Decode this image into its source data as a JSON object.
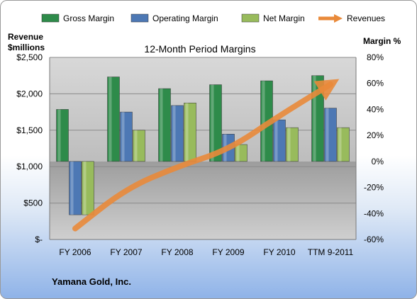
{
  "company": "Yamana Gold, Inc.",
  "chart_data": {
    "type": "bar",
    "title": "12-Month Period Margins",
    "categories": [
      "FY 2006",
      "FY 2007",
      "FY 2008",
      "FY 2009",
      "FY 2010",
      "TTM 9-2011"
    ],
    "series": [
      {
        "name": "Gross Margin",
        "axis": "right",
        "values": [
          40,
          65,
          56,
          59,
          62,
          66
        ],
        "color": "#2e8b4a"
      },
      {
        "name": "Operating Margin",
        "axis": "right",
        "values": [
          -41,
          38,
          43,
          21,
          32,
          41
        ],
        "color": "#4d78b4"
      },
      {
        "name": "Net Margin",
        "axis": "right",
        "values": [
          -41,
          24,
          45,
          13,
          26,
          26
        ],
        "color": "#98bb5c"
      },
      {
        "name": "Revenues",
        "type": "line",
        "axis": "left",
        "values": [
          150,
          700,
          1000,
          1230,
          1700,
          2130
        ],
        "color": "#e98a3a"
      }
    ],
    "left_axis": {
      "label_line1": "Revenue",
      "label_line2": "$millions",
      "ylim": [
        0,
        2500
      ],
      "ticks": [
        2500,
        2000,
        1500,
        1000,
        500,
        0
      ],
      "tick_labels": [
        "$2,500",
        "$2,000",
        "$1,500",
        "$1,000",
        "$500",
        "$-"
      ]
    },
    "right_axis": {
      "label": "Margin %",
      "ylim": [
        -60,
        80
      ],
      "ticks": [
        80,
        60,
        40,
        20,
        0,
        -20,
        -40,
        -60
      ],
      "tick_labels": [
        "80%",
        "60%",
        "40%",
        "20%",
        "0%",
        "-20%",
        "-40%",
        "-60%"
      ]
    },
    "legend": "top",
    "grid": true
  }
}
